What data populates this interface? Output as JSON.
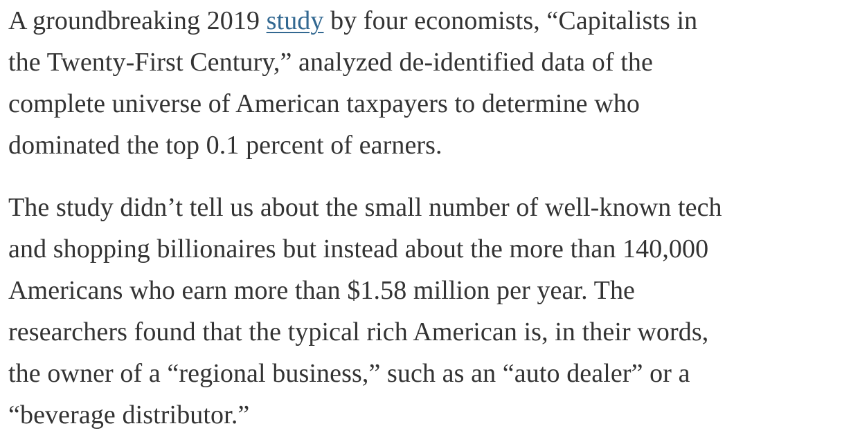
{
  "paragraphs": [
    {
      "lines": [
        {
          "before": "A groundbreaking 2019 ",
          "link": "study",
          "after": " by four economists, “Capitalists in"
        },
        "the Twenty-First Century,” analyzed de-identified data of the",
        "complete universe of American taxpayers to determine who",
        "dominated the top 0.1 percent of earners."
      ]
    },
    {
      "lines": [
        "The study didn’t tell us about the small number of well-known tech",
        "and shopping billionaires but instead about the more than 140,000",
        "Americans who earn more than $1.58 million per year. The",
        "researchers found that the typical rich American is, in their words,",
        "the owner of a “regional business,” such as an “auto dealer” or a",
        "“beverage distributor.”"
      ]
    }
  ]
}
